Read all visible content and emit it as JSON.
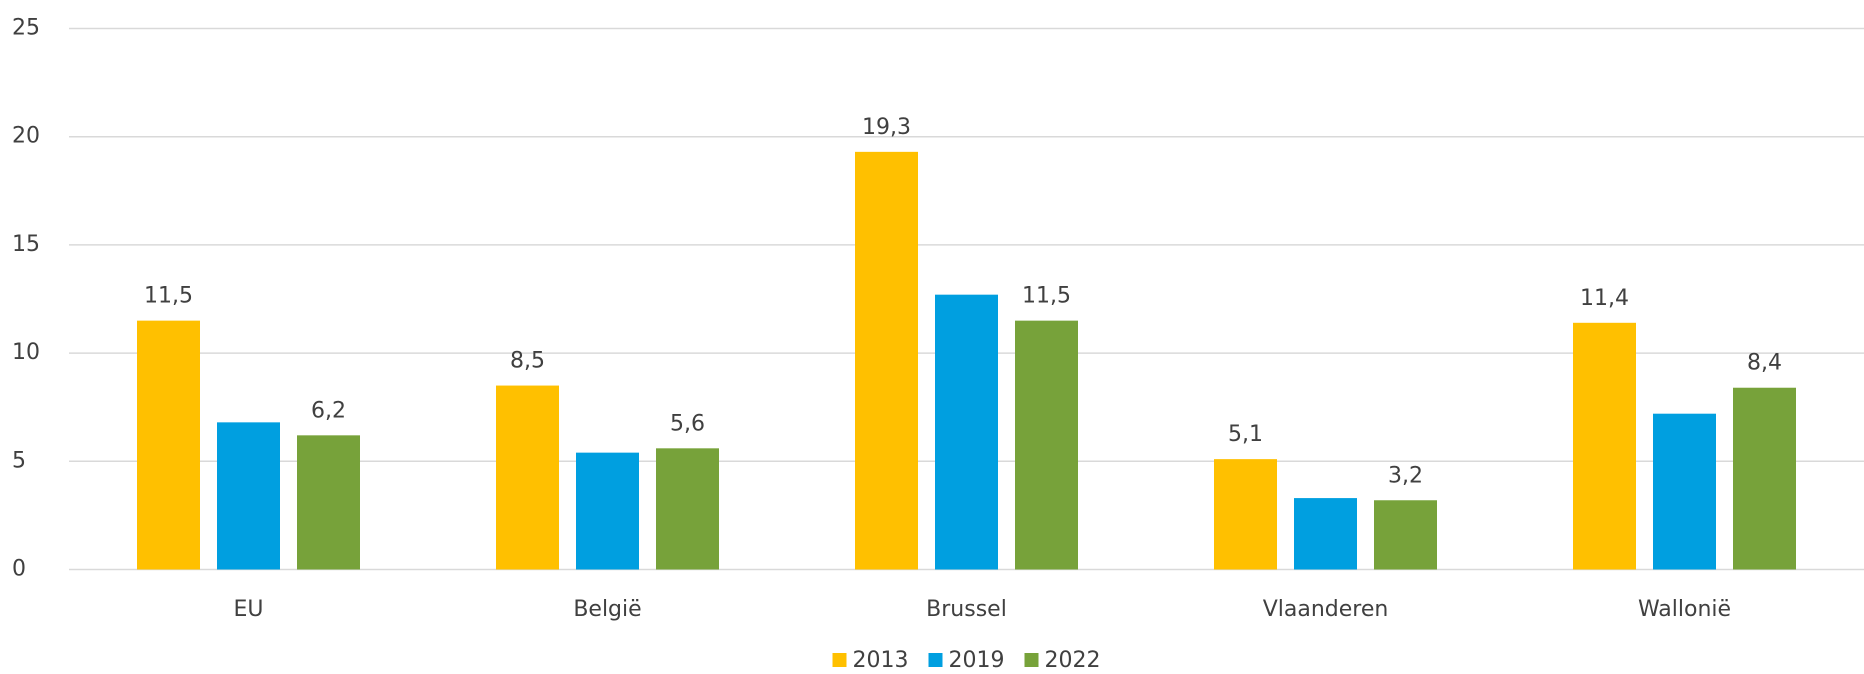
{
  "chart_data": {
    "type": "bar",
    "categories": [
      "EU",
      "België",
      "Brussel",
      "Vlaanderen",
      "Wallonië"
    ],
    "series": [
      {
        "name": "2013",
        "color": "#ffc000",
        "values": [
          11.5,
          8.5,
          19.3,
          5.1,
          11.4
        ],
        "value_labels": [
          "11,5",
          "8,5",
          "19,3",
          "5,1",
          "11,4"
        ]
      },
      {
        "name": "2019",
        "color": "#009fe0",
        "values": [
          6.8,
          5.4,
          12.7,
          3.3,
          7.2
        ]
      },
      {
        "name": "2022",
        "color": "#77a23a",
        "values": [
          6.2,
          5.6,
          11.5,
          3.2,
          8.4
        ],
        "value_labels": [
          "6,2",
          "5,6",
          "11,5",
          "3,2",
          "8,4"
        ]
      }
    ],
    "ylim": [
      0,
      25
    ],
    "yticks": [
      0,
      5,
      10,
      15,
      20,
      25
    ],
    "grid": true,
    "legend": "bottom"
  }
}
